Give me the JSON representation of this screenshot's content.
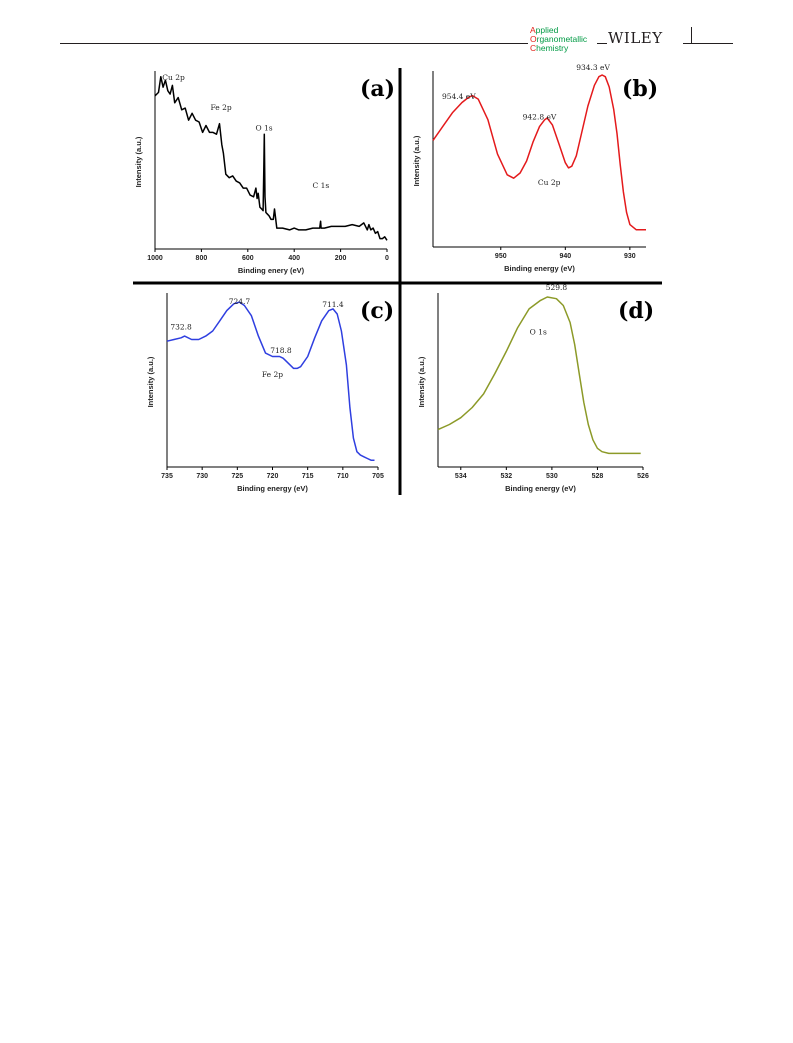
{
  "header": {
    "journal_logo_lines": [
      {
        "first": "A",
        "rest": "pplied"
      },
      {
        "first": "O",
        "rest": "rganometallic"
      },
      {
        "first": "C",
        "rest": "hemistry"
      }
    ],
    "publisher": "WILEY",
    "colors": {
      "journal_green": "#009a44",
      "journal_red": "#e2231a",
      "rule": "#231f20"
    }
  },
  "figure": {
    "panels": [
      "(a)",
      "(b)",
      "(c)",
      "(d)"
    ]
  },
  "chart_data": [
    {
      "panel": "(a)",
      "type": "line",
      "color": "#000000",
      "xlabel": "Binding enery (eV)",
      "ylabel": "Intensity (a.u.)",
      "xlim": [
        1000,
        0
      ],
      "xticks": [
        "1000",
        "800",
        "600",
        "400",
        "200",
        "0"
      ],
      "ylim": [
        0,
        1
      ],
      "annotations": [
        {
          "text": "Cu 2p",
          "x": 920,
          "y": 0.97
        },
        {
          "text": "Fe 2p",
          "x": 715,
          "y": 0.8
        },
        {
          "text": "O 1s",
          "x": 530,
          "y": 0.68
        },
        {
          "text": "C 1s",
          "x": 285,
          "y": 0.35
        }
      ],
      "series": [
        {
          "x": [
            1000,
            985,
            975,
            965,
            955,
            945,
            935,
            925,
            915,
            900,
            885,
            870,
            855,
            840,
            825,
            810,
            795,
            780,
            765,
            750,
            735,
            722,
            712,
            705,
            695,
            680,
            665,
            650,
            635,
            620,
            605,
            590,
            575,
            565,
            560,
            555,
            548,
            540,
            534,
            531,
            529,
            526,
            522,
            515,
            508,
            500,
            495,
            490,
            485,
            475,
            450,
            420,
            400,
            380,
            350,
            320,
            300,
            290,
            286,
            284,
            280,
            270,
            240,
            210,
            180,
            150,
            120,
            100,
            85,
            78,
            70,
            60,
            50,
            40,
            30,
            20,
            10,
            0
          ],
          "y": [
            0.88,
            0.9,
            0.99,
            0.93,
            0.97,
            0.91,
            0.89,
            0.94,
            0.84,
            0.87,
            0.8,
            0.81,
            0.74,
            0.78,
            0.74,
            0.73,
            0.67,
            0.71,
            0.67,
            0.67,
            0.66,
            0.72,
            0.6,
            0.55,
            0.43,
            0.41,
            0.42,
            0.39,
            0.38,
            0.35,
            0.35,
            0.31,
            0.3,
            0.35,
            0.29,
            0.32,
            0.24,
            0.23,
            0.22,
            0.46,
            0.66,
            0.3,
            0.21,
            0.2,
            0.19,
            0.17,
            0.17,
            0.17,
            0.23,
            0.12,
            0.12,
            0.11,
            0.12,
            0.11,
            0.11,
            0.12,
            0.12,
            0.12,
            0.16,
            0.12,
            0.12,
            0.12,
            0.13,
            0.13,
            0.13,
            0.14,
            0.13,
            0.15,
            0.11,
            0.14,
            0.11,
            0.12,
            0.09,
            0.1,
            0.06,
            0.06,
            0.07,
            0.05
          ]
        }
      ]
    },
    {
      "panel": "(b)",
      "type": "line",
      "color": "#e41a1c",
      "xlabel": "Binding energy (eV)",
      "ylabel": "Intensity (a.u.)",
      "xlim": [
        960.5,
        927.5
      ],
      "xticks": [
        "950",
        "940",
        "930"
      ],
      "ylim": [
        0,
        1
      ],
      "annotations": [
        {
          "text": "954.4 eV",
          "x": 956.5,
          "y": 0.86
        },
        {
          "text": "942.8 eV",
          "x": 944,
          "y": 0.74
        },
        {
          "text": "934.3 eV",
          "x": 935.7,
          "y": 1.03
        },
        {
          "text": "Cu 2p",
          "x": 942.5,
          "y": 0.36
        }
      ],
      "series": [
        {
          "x": [
            960.5,
            959,
            957.5,
            956,
            955,
            954.4,
            953.5,
            952,
            950.5,
            949,
            948,
            947,
            946,
            945,
            944,
            943.2,
            942.8,
            942,
            941,
            940,
            939.5,
            939,
            938.3,
            937.5,
            936.5,
            935.5,
            934.8,
            934.3,
            933.8,
            933.2,
            932.5,
            932,
            931.5,
            931,
            930.5,
            930,
            929,
            928,
            927.5
          ],
          "y": [
            0.62,
            0.7,
            0.78,
            0.84,
            0.87,
            0.88,
            0.86,
            0.74,
            0.54,
            0.42,
            0.4,
            0.43,
            0.5,
            0.61,
            0.7,
            0.74,
            0.75,
            0.71,
            0.6,
            0.49,
            0.46,
            0.47,
            0.53,
            0.66,
            0.82,
            0.94,
            0.99,
            1.0,
            0.99,
            0.93,
            0.8,
            0.66,
            0.48,
            0.32,
            0.2,
            0.13,
            0.1,
            0.1,
            0.1
          ]
        }
      ]
    },
    {
      "panel": "(c)",
      "type": "line",
      "color": "#2f3fe0",
      "xlabel": "Binding energy (eV)",
      "ylabel": "Intensity (a.u.)",
      "xlim": [
        735,
        705
      ],
      "xticks": [
        "735",
        "730",
        "725",
        "720",
        "715",
        "710",
        "705"
      ],
      "ylim": [
        0,
        1
      ],
      "annotations": [
        {
          "text": "732.8",
          "x": 733,
          "y": 0.81
        },
        {
          "text": "724.7",
          "x": 724.7,
          "y": 0.96
        },
        {
          "text": "718.8",
          "x": 718.8,
          "y": 0.67
        },
        {
          "text": "711.4",
          "x": 711.4,
          "y": 0.94
        },
        {
          "text": "Fe 2p",
          "x": 720,
          "y": 0.53
        }
      ],
      "series": [
        {
          "x": [
            735,
            734,
            733,
            732.5,
            731.5,
            730.5,
            729.5,
            728.5,
            727.5,
            726.5,
            725.5,
            724.7,
            724,
            723,
            722,
            721,
            720,
            719,
            718.5,
            718,
            717,
            716.5,
            716,
            715,
            714,
            713,
            712,
            711.4,
            710.8,
            710.2,
            709.5,
            709,
            708.5,
            708,
            707.5,
            707,
            706.5,
            706,
            705.5
          ],
          "y": [
            0.74,
            0.75,
            0.76,
            0.77,
            0.75,
            0.75,
            0.77,
            0.8,
            0.86,
            0.92,
            0.96,
            0.97,
            0.95,
            0.89,
            0.77,
            0.67,
            0.65,
            0.65,
            0.64,
            0.62,
            0.58,
            0.58,
            0.59,
            0.65,
            0.76,
            0.86,
            0.92,
            0.93,
            0.9,
            0.8,
            0.6,
            0.35,
            0.17,
            0.09,
            0.07,
            0.06,
            0.05,
            0.04,
            0.04
          ]
        }
      ]
    },
    {
      "panel": "(d)",
      "type": "line",
      "color": "#8c9a28",
      "xlabel": "Binding energy (eV)",
      "ylabel": "Intensity (a.u.)",
      "xlim": [
        535,
        526
      ],
      "xticks": [
        "534",
        "532",
        "530",
        "528",
        "526"
      ],
      "ylim": [
        0,
        1
      ],
      "annotations": [
        {
          "text": "529.8",
          "x": 529.8,
          "y": 1.04
        },
        {
          "text": "O 1s",
          "x": 530.6,
          "y": 0.78
        }
      ],
      "series": [
        {
          "x": [
            535,
            534.5,
            534,
            533.5,
            533,
            532.5,
            532,
            531.5,
            531,
            530.5,
            530.2,
            529.8,
            529.5,
            529.2,
            529,
            528.8,
            528.6,
            528.4,
            528.2,
            528,
            527.8,
            527.5,
            527.2,
            526.8,
            526.4,
            526.1
          ],
          "y": [
            0.22,
            0.25,
            0.29,
            0.35,
            0.43,
            0.55,
            0.68,
            0.82,
            0.93,
            0.98,
            1.0,
            0.99,
            0.95,
            0.85,
            0.72,
            0.55,
            0.38,
            0.25,
            0.16,
            0.11,
            0.09,
            0.08,
            0.08,
            0.08,
            0.08,
            0.08
          ]
        }
      ]
    }
  ]
}
